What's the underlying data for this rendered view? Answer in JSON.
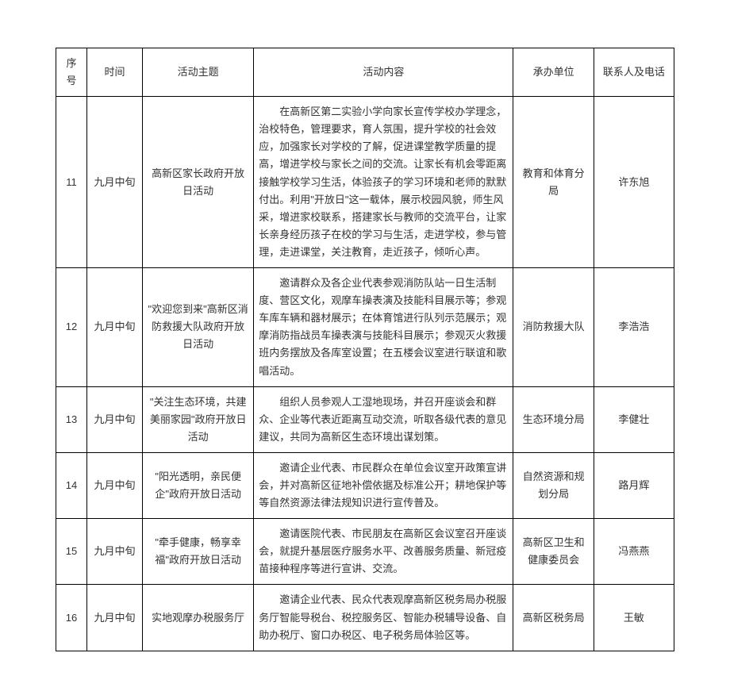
{
  "columns": {
    "seq": "序号",
    "time": "时间",
    "theme": "活动主题",
    "content": "活动内容",
    "unit": "承办单位",
    "contact": "联系人及电话"
  },
  "rows": [
    {
      "seq": "11",
      "time": "九月中旬",
      "theme": "高新区家长政府开放日活动",
      "content": "在高新区第二实验小学向家长宣传学校办学理念，治校特色，管理要求，育人氛围，提升学校的社会效应，加强家长对学校的了解，促进课堂教学质量的提高，增进学校与家长之间的交流。让家长有机会零距离接触学校学习生活，体验孩子的学习环境和老师的默默付出。利用\"开放日\"这一载体，展示校园风貌，师生风采，增进家校联系，搭建家长与教师的交流平台，让家长亲身经历孩子在校的学习与生活，走进学校，参与管理，走进课堂，关注教育，走近孩子，倾听心声。",
      "unit": "教育和体育分局",
      "contact": "许东旭"
    },
    {
      "seq": "12",
      "time": "九月中旬",
      "theme": "\"欢迎您到来\"高新区消防救援大队政府开放日活动",
      "content": "邀请群众及各企业代表参观消防队站一日生活制度、营区文化，观摩车操表演及技能科目展示等；参观车库车辆和器材展示；在体育馆进行队列示范展示；观摩消防指战员车操表演与技能科目展示；参观灭火救援班内务摆放及各库室设置；在五楼会议室进行联谊和歌唱活动。",
      "unit": "消防救援大队",
      "contact": "李浩浩"
    },
    {
      "seq": "13",
      "time": "九月中旬",
      "theme": "\"关注生态环境，共建美丽家园\"政府开放日活动",
      "content": "组织人员参观人工湿地现场，并召开座谈会和群众、企业等代表近距离互动交流，听取各级代表的意见建议，共同为高新区生态环境出谋划策。",
      "unit": "生态环境分局",
      "contact": "李健壮"
    },
    {
      "seq": "14",
      "time": "九月中旬",
      "theme": "\"阳光透明，亲民便企\"政府开放日活动",
      "content": "邀请企业代表、市民群众在单位会议室开政策宣讲会，并对高新区征地补偿依据及标准公开；耕地保护等等自然资源法律法规知识进行宣传普及。",
      "unit": "自然资源和规划分局",
      "contact": "路月辉"
    },
    {
      "seq": "15",
      "time": "九月中旬",
      "theme": "\"牵手健康，畅享幸福\"政府开放日活动",
      "content": "邀请医院代表、市民朋友在高新区会议室召开座谈会，就提升基层医疗服务水平、改善服务质量、新冠疫苗接种程序等进行宣讲、交流。",
      "unit": "高新区卫生和健康委员会",
      "contact": "冯燕燕"
    },
    {
      "seq": "16",
      "time": "九月中旬",
      "theme": "实地观摩办税服务厅",
      "content": "邀请企业代表、民众代表观摩高新区税务局办税服务厅智能导税台、税控服务区、智能办税辅导设备、自助办税厅、窗口办税区、电子税务局体验区等。",
      "unit": "高新区税务局",
      "contact": "王敏"
    }
  ]
}
